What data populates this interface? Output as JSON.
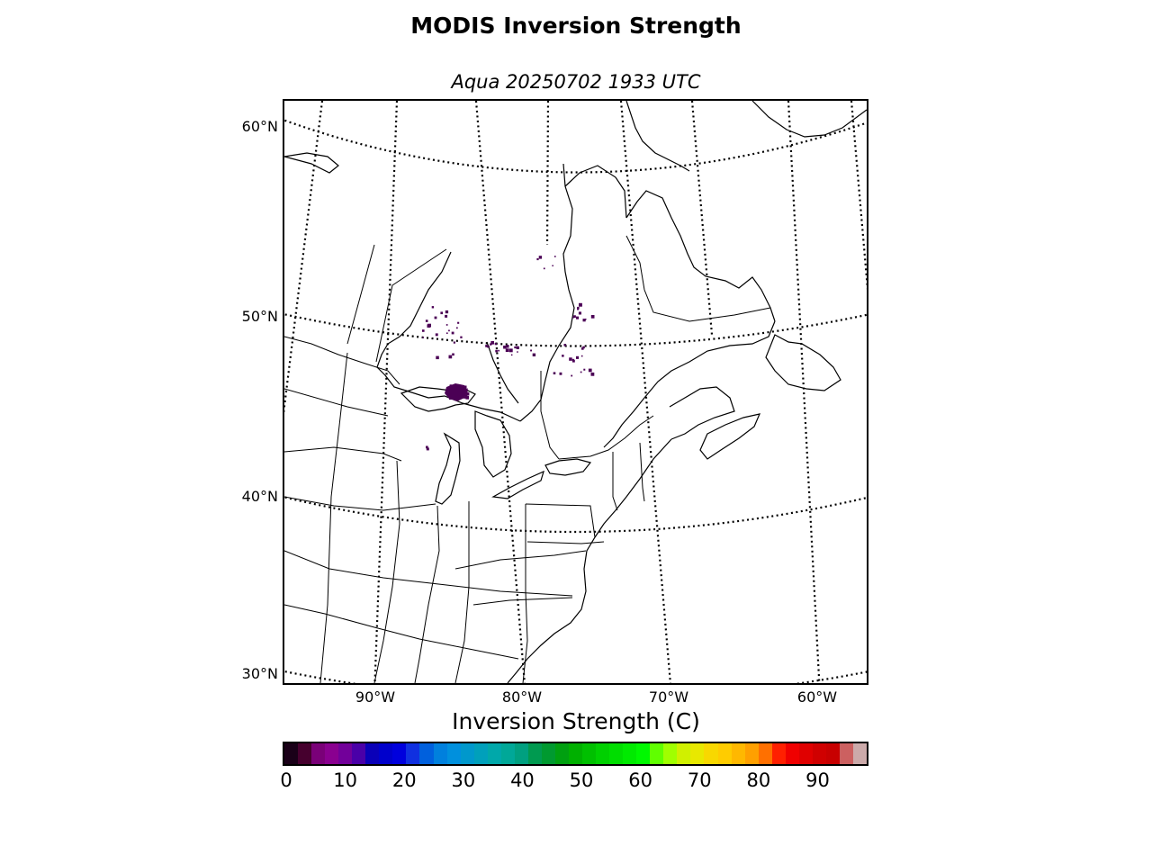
{
  "title": "MODIS Inversion Strength",
  "subtitle": "Aqua 20250702 1933 UTC",
  "map": {
    "latitude_labels": [
      "60°N",
      "50°N",
      "40°N",
      "30°N"
    ],
    "longitude_labels": [
      "90°W",
      "80°W",
      "70°W",
      "60°W"
    ],
    "projection": "lambert-conformal",
    "data_pixel_color": "#4b0055",
    "line_color": "#000000"
  },
  "colorbar": {
    "label": "Inversion Strength (C)",
    "ticks": [
      "0",
      "10",
      "20",
      "30",
      "40",
      "50",
      "60",
      "70",
      "80",
      "90"
    ],
    "range": [
      0,
      98
    ],
    "colors": [
      "#1a0018",
      "#46002e",
      "#7a0078",
      "#8a0090",
      "#72009a",
      "#4a00a8",
      "#0a00b8",
      "#0000cc",
      "#0000dd",
      "#1030e0",
      "#0060dd",
      "#0080dd",
      "#0090dd",
      "#0098cc",
      "#00a0bb",
      "#00a8aa",
      "#00a898",
      "#00a080",
      "#009a50",
      "#009a30",
      "#00a010",
      "#00b000",
      "#00c000",
      "#00d000",
      "#00dd00",
      "#00ea00",
      "#00f800",
      "#60ff00",
      "#a0ff00",
      "#d0f000",
      "#e8e800",
      "#f8d800",
      "#ffcc00",
      "#ffb800",
      "#ffa000",
      "#ff7000",
      "#ff2000",
      "#f00000",
      "#e00000",
      "#d00000",
      "#c80000",
      "#cc6060",
      "#ccaaaa"
    ]
  }
}
